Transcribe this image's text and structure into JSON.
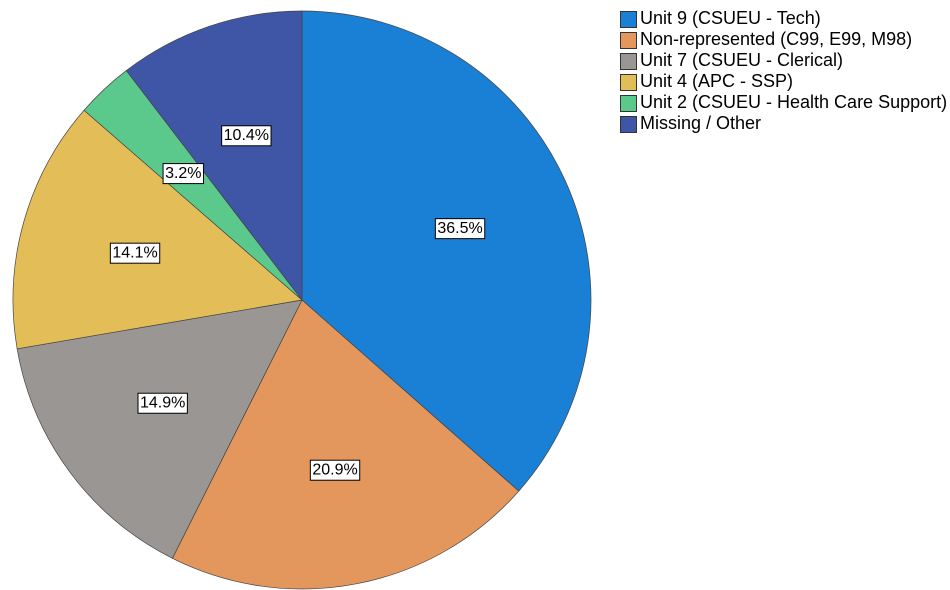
{
  "chart_data": {
    "type": "pie",
    "categories": [
      "Unit 9 (CSUEU - Tech)",
      "Non-represented (C99, E99, M98)",
      "Unit 7 (CSUEU - Clerical)",
      "Unit 4 (APC - SSP)",
      "Unit 2 (CSUEU - Health Care Support)",
      "Missing / Other"
    ],
    "values": [
      36.5,
      20.9,
      14.9,
      14.1,
      3.2,
      10.4
    ],
    "value_labels": [
      "36.5%",
      "20.9%",
      "14.9%",
      "14.1%",
      "3.2%",
      "10.4%"
    ],
    "colors": [
      "#1a80d6",
      "#e3975c",
      "#9a9694",
      "#e3bd57",
      "#5cc98c",
      "#3f55a5"
    ],
    "legend": "right"
  }
}
